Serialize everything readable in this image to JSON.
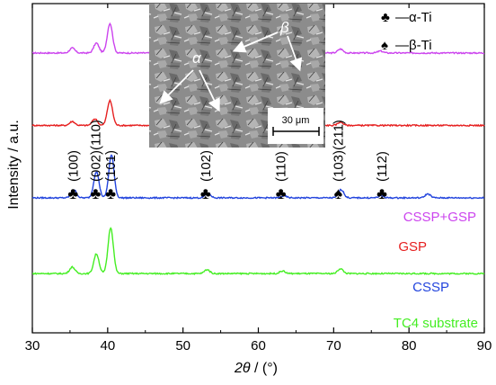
{
  "chart_data": {
    "type": "line",
    "xlabel_parts": {
      "symbol": "2θ",
      "unit": " / (°)"
    },
    "ylabel": "Intensity / a.u.",
    "xlim": [
      30,
      90
    ],
    "xticks": [
      30,
      40,
      50,
      60,
      70,
      80,
      90
    ],
    "show_y_ticks": false,
    "series": [
      {
        "name": "CSSP+GSP",
        "color": "#cc44ee",
        "baseline": 0.85,
        "peaks": [
          [
            35.3,
            0.015
          ],
          [
            38.5,
            0.03
          ],
          [
            40.3,
            0.09
          ],
          [
            53.2,
            0.012
          ],
          [
            63.2,
            0.006
          ],
          [
            70.9,
            0.012
          ],
          [
            76.2,
            0.006
          ]
        ]
      },
      {
        "name": "GSP",
        "color": "#e62020",
        "baseline": 0.63,
        "peaks": [
          [
            35.3,
            0.012
          ],
          [
            38.3,
            0.02
          ],
          [
            40.3,
            0.075
          ],
          [
            53.2,
            0.01
          ],
          [
            63.2,
            0.004
          ],
          [
            70.9,
            0.01
          ]
        ]
      },
      {
        "name": "CSSP",
        "color": "#2244dd",
        "baseline": 0.41,
        "peaks": [
          [
            35.5,
            0.025
          ],
          [
            38.5,
            0.08
          ],
          [
            40.5,
            0.13
          ],
          [
            53.3,
            0.015
          ],
          [
            63.4,
            0.006
          ],
          [
            71.0,
            0.025
          ],
          [
            76.3,
            0.006
          ],
          [
            82.5,
            0.012
          ]
        ]
      },
      {
        "name": "TC4 substrate",
        "color": "#44ee22",
        "baseline": 0.18,
        "peaks": [
          [
            35.3,
            0.02
          ],
          [
            38.5,
            0.06
          ],
          [
            40.4,
            0.14
          ],
          [
            53.2,
            0.012
          ],
          [
            63.2,
            0.008
          ],
          [
            70.9,
            0.015
          ]
        ]
      }
    ],
    "peak_labels": [
      {
        "x": 35.4,
        "text": "(100)",
        "phase": "alpha"
      },
      {
        "x": 38.4,
        "text": "(002)(110)",
        "phase": "alpha"
      },
      {
        "x": 40.4,
        "text": "(101)",
        "phase": "alpha"
      },
      {
        "x": 53.0,
        "text": "(102)",
        "phase": "alpha"
      },
      {
        "x": 63.0,
        "text": "(110)",
        "phase": "alpha"
      },
      {
        "x": 70.6,
        "text": "(103)(211)",
        "phase": "beta"
      },
      {
        "x": 76.4,
        "text": "(112)",
        "phase": "alpha"
      }
    ],
    "legend": [
      {
        "phase": "alpha",
        "symbol": "♣",
        "text": "—α-Ti"
      },
      {
        "phase": "beta",
        "symbol": "♠",
        "text": "—β-Ti"
      }
    ],
    "inset": {
      "labels": {
        "alpha": "α",
        "beta": "β"
      },
      "scale_bar": "30 μm"
    }
  }
}
